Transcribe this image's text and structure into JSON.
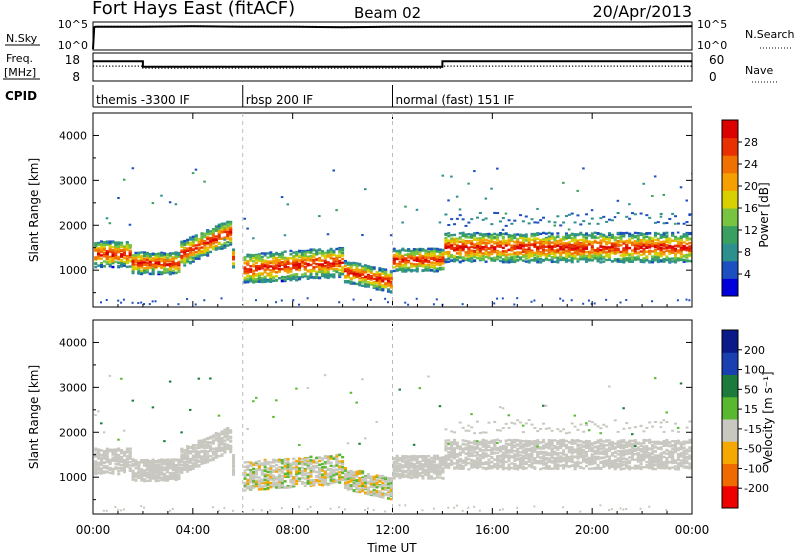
{
  "header": {
    "station": "Fort Hays East (fitACF)",
    "beam": "Beam 02",
    "date": "20/Apr/2013"
  },
  "chart_data": [
    {
      "type": "line",
      "panel": "noise",
      "left_label": "N.Sky",
      "right_label": "N.Search",
      "left_ticks": [
        "10^5",
        "10^0"
      ],
      "right_ticks": [
        "10^5",
        "10^0"
      ],
      "series": [
        {
          "name": "N.Sky",
          "style": "solid",
          "x": [
            0,
            0.05,
            0.1,
            2,
            4,
            6,
            8,
            10,
            12,
            14,
            16,
            18,
            20,
            22,
            24
          ],
          "y": [
            0,
            4.6,
            4.7,
            4.7,
            4.8,
            4.7,
            4.7,
            4.6,
            4.7,
            4.7,
            4.7,
            4.7,
            4.7,
            4.7,
            4.8
          ]
        },
        {
          "name": "N.Search",
          "style": "dotted",
          "x": [
            0,
            0.05,
            0.1,
            2,
            4,
            6,
            8,
            10,
            12,
            14,
            16,
            18,
            20,
            22,
            24
          ],
          "y": [
            0,
            4.7,
            4.8,
            4.8,
            4.9,
            4.8,
            4.8,
            4.7,
            4.8,
            4.8,
            4.8,
            4.8,
            4.8,
            4.8,
            4.9
          ]
        }
      ]
    },
    {
      "type": "line",
      "panel": "frequency",
      "left_label": "Freq.",
      "left_unit": "[MHz]",
      "right_label": "Nave",
      "left_ticks": [
        18,
        8
      ],
      "right_ticks": [
        60,
        0
      ],
      "series": [
        {
          "name": "Freq.",
          "style": "solid",
          "x": [
            0,
            2,
            2,
            14,
            14,
            24
          ],
          "y": [
            16.0,
            16.0,
            13.4,
            13.4,
            16.0,
            16.0
          ]
        },
        {
          "name": "Nave",
          "style": "dotted",
          "x": [
            0,
            2,
            2,
            14,
            14,
            24
          ],
          "y": [
            34,
            34,
            28,
            28,
            34,
            34
          ]
        }
      ]
    },
    {
      "type": "table",
      "panel": "cpid",
      "label": "CPID",
      "segments": [
        {
          "start": 0,
          "end": 6,
          "text": "themis -3300 IF"
        },
        {
          "start": 6,
          "end": 12,
          "text": "rbsp 200 IF"
        },
        {
          "start": 12,
          "end": 24,
          "text": "normal (fast) 151 IF"
        }
      ]
    },
    {
      "type": "heatmap",
      "panel": "power",
      "ylabel": "Slant Range [km]",
      "yticks": [
        1000,
        2000,
        3000,
        4000
      ],
      "ylim": [
        180,
        4500
      ],
      "xlim": [
        0,
        24
      ],
      "colorbar_label": "Power [dB]",
      "colorbar_ticks": [
        "28",
        "24",
        "20",
        "16",
        "12",
        "8",
        "4"
      ],
      "colorscale": [
        "#0000dd",
        "#1c4fbf",
        "#2e8f8f",
        "#3aa060",
        "#78c440",
        "#d8d000",
        "#f5a000",
        "#f07000",
        "#e83000",
        "#dd0000"
      ],
      "clim": [
        0,
        32
      ]
    },
    {
      "type": "heatmap",
      "panel": "velocity",
      "ylabel": "Slant Range [km]",
      "yticks": [
        1000,
        2000,
        3000,
        4000
      ],
      "ylim": [
        180,
        4500
      ],
      "xlim": [
        0,
        24
      ],
      "colorbar_label": "Velocity [m s⁻¹]",
      "colorbar_ticks": [
        "200",
        "100",
        "50",
        "15",
        "-15",
        "-50",
        "-100",
        "-200"
      ],
      "colorscale": [
        "#ee0000",
        "#f06a00",
        "#f5a800",
        "#c8c8c0",
        "#5ab830",
        "#1c7a3a",
        "#1a3fb0",
        "#0a1a88"
      ],
      "clim": [
        -250,
        250
      ]
    }
  ],
  "xaxis": {
    "ticks": [
      "00:00",
      "04:00",
      "08:00",
      "12:00",
      "16:00",
      "20:00",
      "00:00"
    ],
    "title": "Time UT"
  }
}
